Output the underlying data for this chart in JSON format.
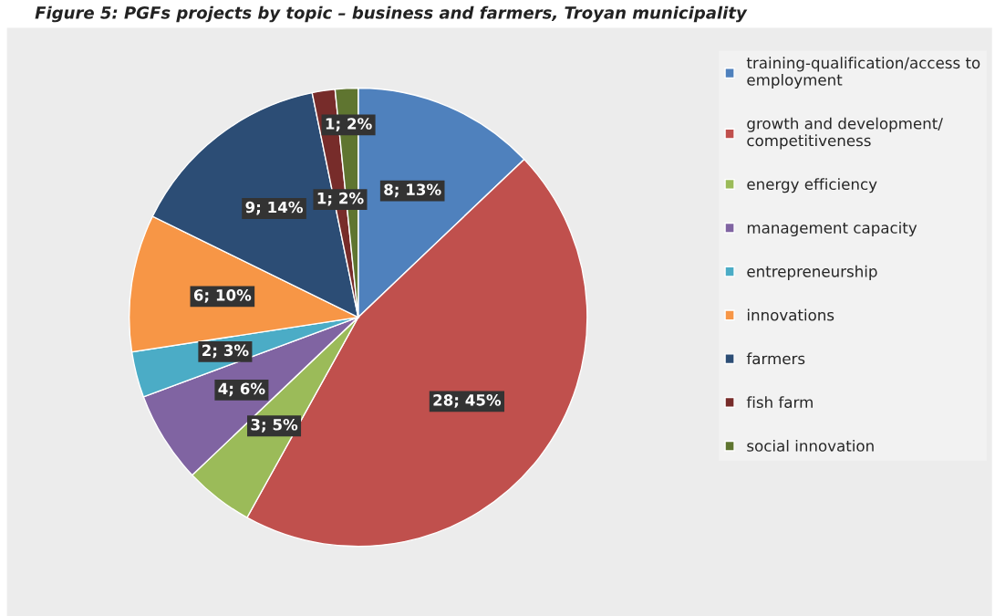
{
  "chart_data": {
    "type": "pie",
    "title": "Figure 5: PGFs projects by topic – business and farmers, Troyan municipality",
    "categories": [
      "training-qualification/access to employment",
      "growth and development/ competitiveness",
      "energy efficiency",
      "management capacity",
      "entrepreneurship",
      "innovations",
      "farmers",
      "fish farm",
      "social innovation"
    ],
    "values": [
      8,
      28,
      3,
      4,
      2,
      6,
      9,
      1,
      1
    ],
    "value_labels": [
      "8; 13%",
      "28; 45%",
      "3; 5%",
      "4; 6%",
      "2; 3%",
      "6; 10%",
      "9; 14%",
      "1; 2%",
      "1; 2%"
    ],
    "colors": [
      "#4f81bd",
      "#c0504d",
      "#9bbb59",
      "#8064a2",
      "#4bacc6",
      "#f79646",
      "#2c4d75",
      "#772c2a",
      "#5f7530"
    ],
    "legend": "right"
  }
}
